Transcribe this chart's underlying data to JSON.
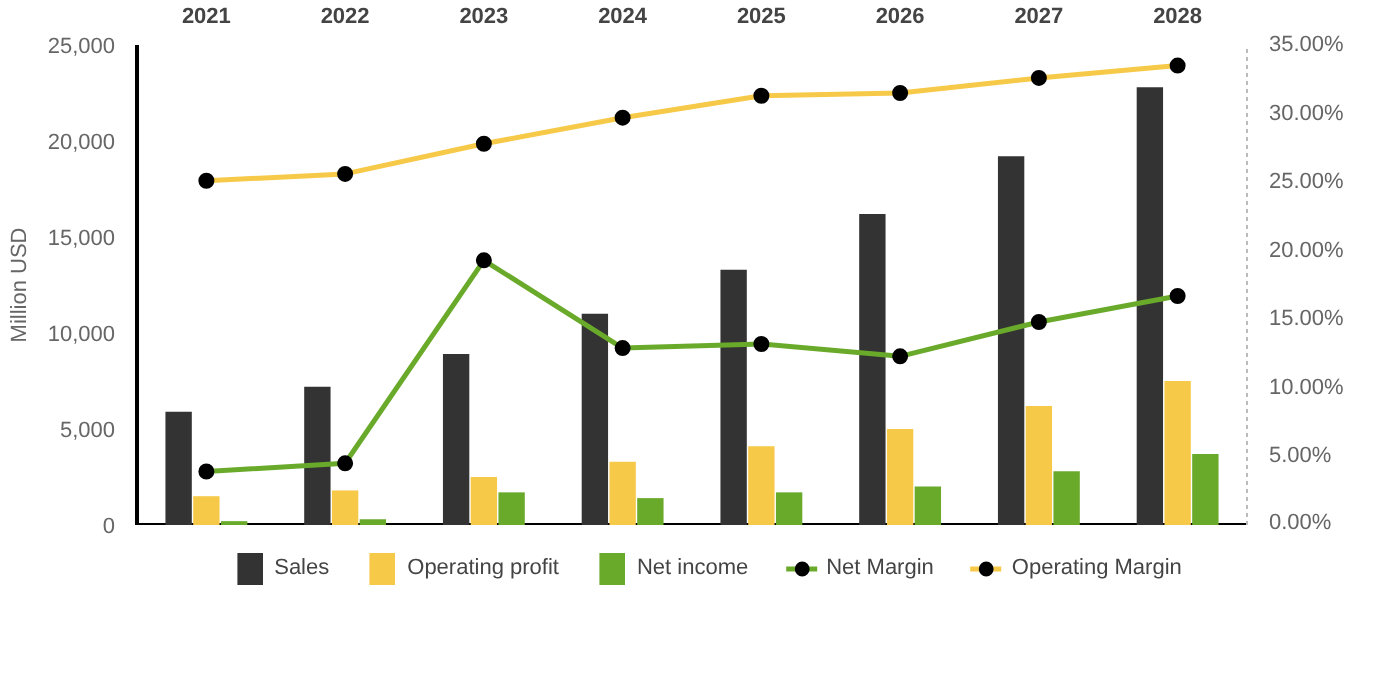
{
  "chart_data": {
    "type": "bar",
    "categories": [
      "2021",
      "2022",
      "2023",
      "2024",
      "2025",
      "2026",
      "2027",
      "2028"
    ],
    "ylabel": "Million USD",
    "ylim": [
      0,
      25000
    ],
    "yticks": [
      {
        "value": 0,
        "label": "0"
      },
      {
        "value": 5000,
        "label": "5,000"
      },
      {
        "value": 10000,
        "label": "10,000"
      },
      {
        "value": 15000,
        "label": "15,000"
      },
      {
        "value": 20000,
        "label": "20,000"
      },
      {
        "value": 25000,
        "label": "25,000"
      }
    ],
    "y2lim": [
      0,
      35
    ],
    "y2ticks": [
      {
        "value": 0,
        "label": "0.00%"
      },
      {
        "value": 5,
        "label": "5.00%"
      },
      {
        "value": 10,
        "label": "10.00%"
      },
      {
        "value": 15,
        "label": "15.00%"
      },
      {
        "value": 20,
        "label": "20.00%"
      },
      {
        "value": 25,
        "label": "25.00%"
      },
      {
        "value": 30,
        "label": "30.00%"
      },
      {
        "value": 35,
        "label": "35.00%"
      }
    ],
    "legend": "bottom",
    "marker": "circle",
    "series": [
      {
        "name": "Sales",
        "color": "#333333",
        "values": [
          5900,
          7200,
          8900,
          11000,
          13300,
          16200,
          19200,
          22800
        ]
      },
      {
        "name": "Operating profit",
        "color": "#f7c948",
        "values": [
          1500,
          1800,
          2500,
          3300,
          4100,
          5000,
          6200,
          7500
        ]
      },
      {
        "name": "Net income",
        "color": "#6aaa2a",
        "values": [
          200,
          300,
          1700,
          1400,
          1700,
          2000,
          2800,
          3700
        ]
      },
      {
        "name": "Net Margin",
        "type": "line",
        "axis": "y2",
        "color": "#6aaa2a",
        "values": [
          3.9,
          4.5,
          19.3,
          12.9,
          13.2,
          12.3,
          14.8,
          16.7
        ]
      },
      {
        "name": "Operating Margin",
        "type": "line",
        "axis": "y2",
        "color": "#f7c948",
        "values": [
          25.1,
          25.6,
          27.8,
          29.7,
          31.3,
          31.5,
          32.6,
          33.5
        ]
      }
    ]
  }
}
